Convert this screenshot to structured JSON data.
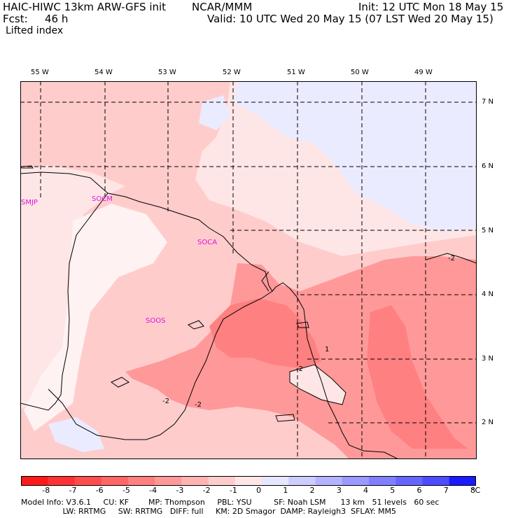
{
  "header": {
    "left_line1": "HAIC-HIWC 13km ARW-GFS init",
    "center_line1": "NCAR/MMM",
    "right_line1": "Init: 12 UTC Mon 18 May 15",
    "left_line2_label": "Fcst:",
    "left_line2_value": "46 h",
    "right_line2": "Valid: 10 UTC Wed 20 May 15 (07 LST Wed 20 May 15)",
    "field_name": "Lifted index"
  },
  "map": {
    "lon_labels": [
      "55 W",
      "54 W",
      "53 W",
      "52 W",
      "51 W",
      "50 W",
      "49 W"
    ],
    "lat_labels": [
      "7 N",
      "6 N",
      "5 N",
      "4 N",
      "3 N",
      "2 N"
    ],
    "stations": [
      "SMJP",
      "SOCM",
      "SOCA",
      "SOOS"
    ],
    "contour_labels": [
      "-2",
      "-2",
      "-2",
      "-2",
      "1"
    ]
  },
  "colorbar": {
    "labels": [
      "-8",
      "-7",
      "-6",
      "-5",
      "-4",
      "-3",
      "-2",
      "-1",
      "0",
      "1",
      "2",
      "3",
      "4",
      "5",
      "6",
      "7",
      "8"
    ],
    "unit": "°C",
    "colors": [
      "#ff1a1a",
      "#ff3333",
      "#ff4d4d",
      "#ff6666",
      "#ff8080",
      "#ff9999",
      "#ffb3b3",
      "#ffcccc",
      "#ffe6e6",
      "#e6e6ff",
      "#ccccff",
      "#b3b3ff",
      "#9999ff",
      "#8080ff",
      "#6666ff",
      "#4d4dff",
      "#1a1aff"
    ]
  },
  "footer": {
    "line1": "Model Info: V3.6.1     CU: KF        MP: Thompson     PBL: YSU         SF: Noah LSM      13 km   51 levels   60 sec",
    "line2": "                 LW: RRTMG     SW: RRTMG   DIFF: full     KM: 2D Smagor  DAMP: Rayleigh3  SFLAY: MM5"
  }
}
